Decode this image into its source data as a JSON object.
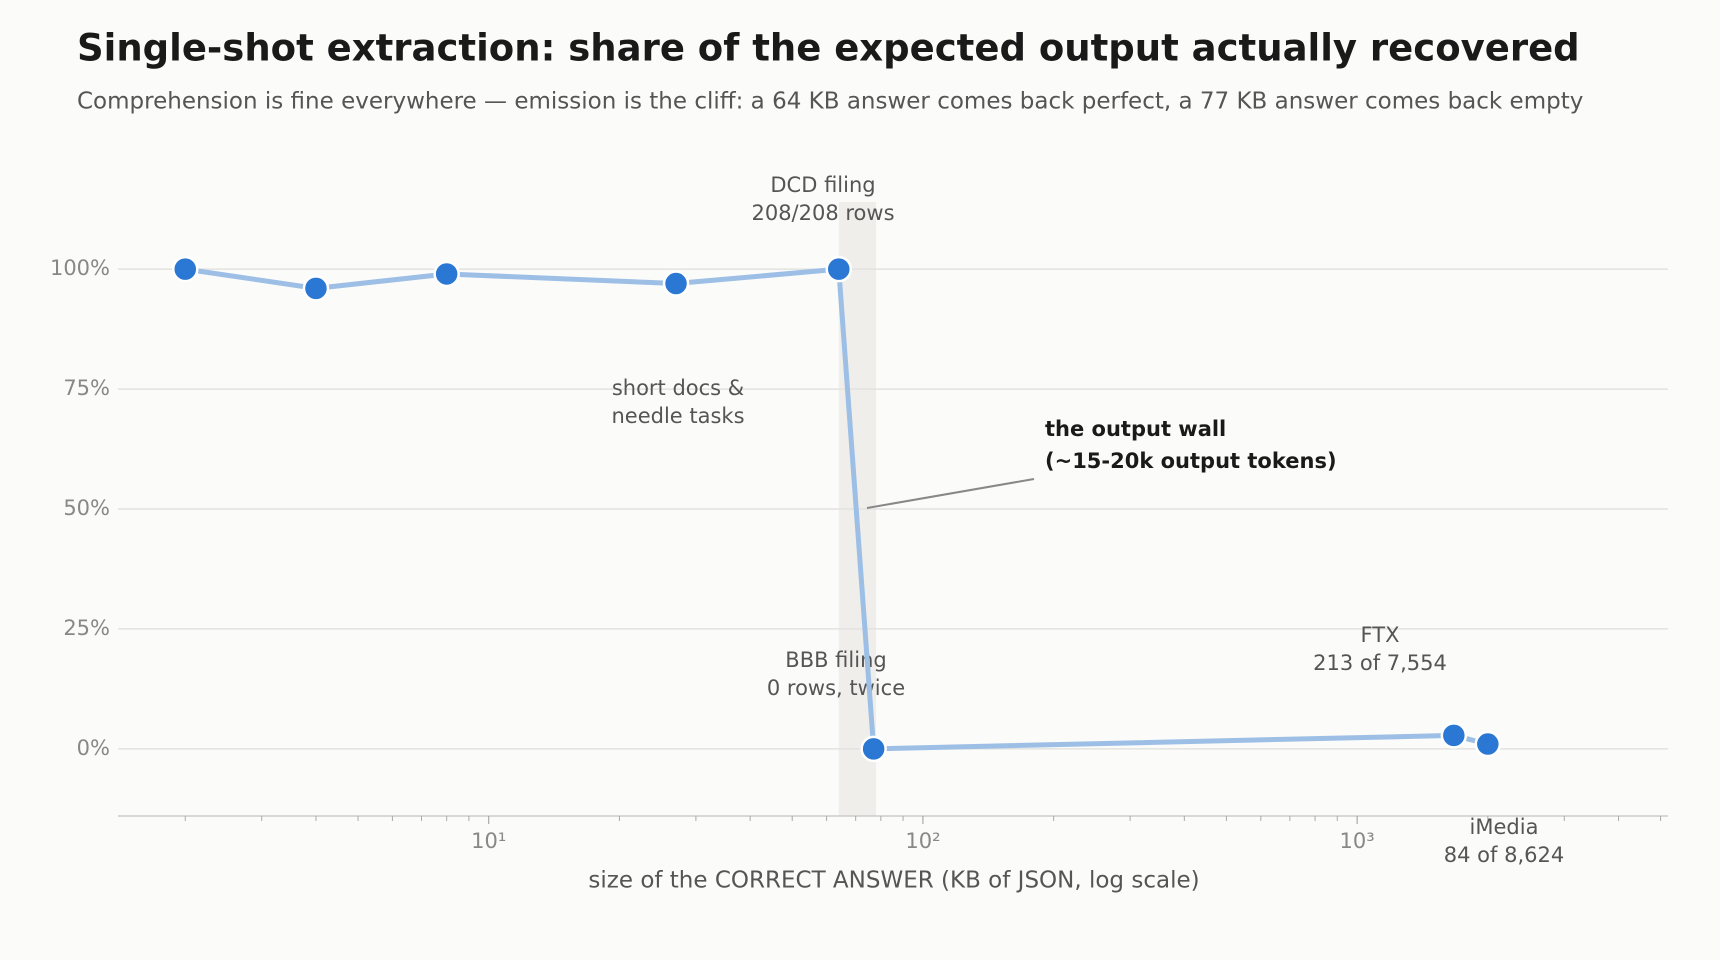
{
  "chart_data": {
    "type": "line",
    "title": "Single-shot extraction: share of the expected output actually recovered",
    "subtitle": "Comprehension is fine everywhere — emission is the cliff: a 64 KB answer comes back perfect, a 77 KB answer comes back empty",
    "x_label": "size of the CORRECT ANSWER (KB of JSON, log scale)",
    "x_scale": "log",
    "x": [
      2,
      4,
      8,
      27,
      64,
      77,
      1670,
      2000
    ],
    "series": [
      {
        "color": "#2a77d4",
        "line_color": "#9dbfe6",
        "values": [
          100,
          96,
          99,
          97,
          100,
          0,
          2.8,
          1.0
        ]
      }
    ],
    "xlim": [
      1.4,
      5200
    ],
    "xticks": [
      {
        "value": 10,
        "label": "10¹"
      },
      {
        "value": 100,
        "label": "10²"
      },
      {
        "value": 1000,
        "label": "10³"
      }
    ],
    "xminor_ticks": [
      2,
      3,
      4,
      5,
      6,
      7,
      8,
      9,
      20,
      30,
      40,
      50,
      60,
      70,
      80,
      90,
      200,
      300,
      400,
      500,
      600,
      700,
      800,
      900,
      2000,
      3000,
      4000,
      5000
    ],
    "ylim": [
      -14,
      114
    ],
    "yticks": [
      {
        "value": 0,
        "label": "0%"
      },
      {
        "value": 25,
        "label": "25%"
      },
      {
        "value": 50,
        "label": "50%"
      },
      {
        "value": 75,
        "label": "75%"
      },
      {
        "value": 100,
        "label": "100%"
      }
    ],
    "grid": true,
    "shade_x": [
      64,
      78
    ],
    "annotations": [
      [
        "DCD filing",
        "208/208 rows"
      ],
      [
        "short docs &",
        "needle tasks"
      ],
      [
        "the output wall",
        "(~15-20k output tokens)"
      ],
      [
        "BBB filing",
        "0 rows, twice"
      ],
      [
        "FTX",
        "213 of 7,554"
      ],
      [
        "iMedia",
        "84 of 8,624"
      ]
    ]
  }
}
